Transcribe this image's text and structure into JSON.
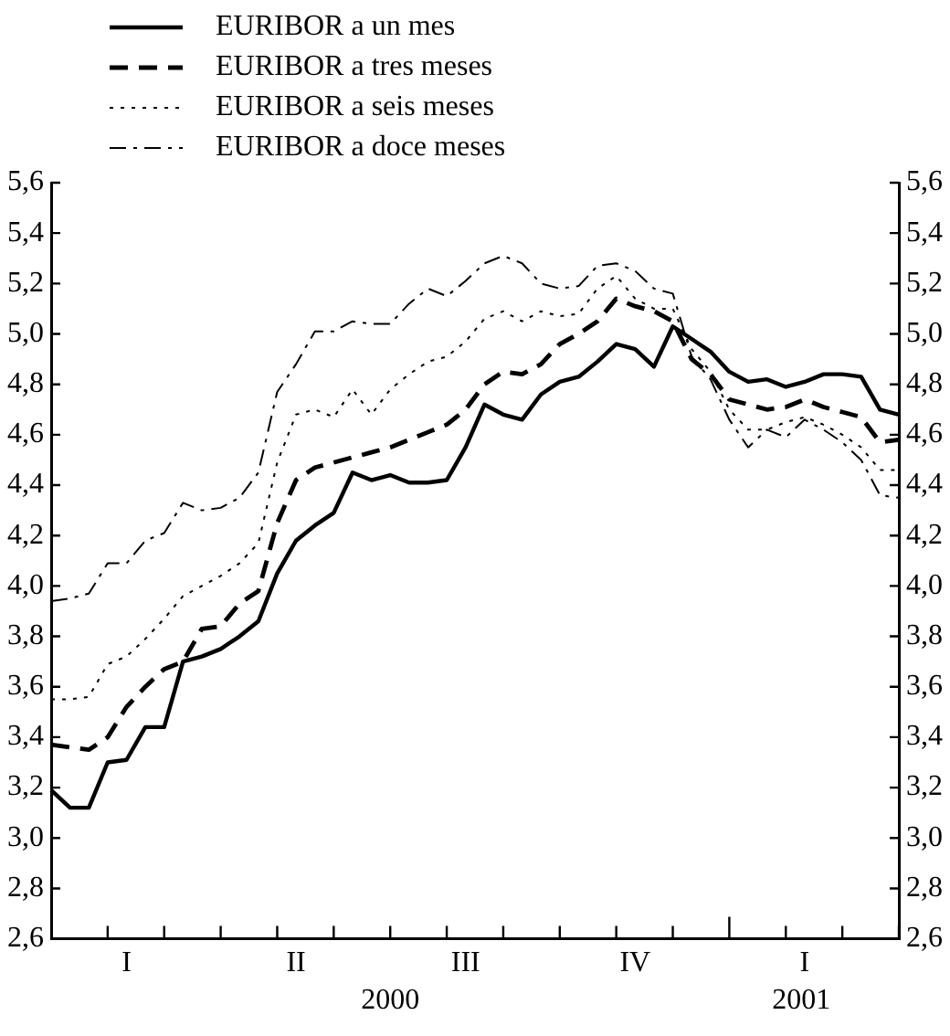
{
  "chart_data": {
    "type": "line",
    "legend": "top left",
    "grid": false,
    "marker": "none",
    "categories": [
      null,
      null,
      null,
      null,
      "I",
      null,
      null,
      null,
      null,
      null,
      null,
      null,
      null,
      "II",
      null,
      null,
      null,
      null,
      null,
      null,
      null,
      null,
      "III",
      null,
      null,
      null,
      null,
      null,
      null,
      null,
      null,
      "IV",
      null,
      null,
      null,
      null,
      null,
      null,
      null,
      null,
      "I",
      null,
      null,
      null,
      null,
      null
    ],
    "annotations": [
      "2000",
      "2001"
    ],
    "ylim": [
      2.6,
      5.6
    ],
    "yticks": [
      {
        "value": 2.6,
        "label": "2,6"
      },
      {
        "value": 2.8,
        "label": "2,8"
      },
      {
        "value": 3.0,
        "label": "3,0"
      },
      {
        "value": 3.2,
        "label": "3,2"
      },
      {
        "value": 3.4,
        "label": "3,4"
      },
      {
        "value": 3.6,
        "label": "3,6"
      },
      {
        "value": 3.8,
        "label": "3,8"
      },
      {
        "value": 4.0,
        "label": "4,0"
      },
      {
        "value": 4.2,
        "label": "4,2"
      },
      {
        "value": 4.4,
        "label": "4,4"
      },
      {
        "value": 4.6,
        "label": "4,6"
      },
      {
        "value": 4.8,
        "label": "4,8"
      },
      {
        "value": 5.0,
        "label": "5,0"
      },
      {
        "value": 5.2,
        "label": "5,2"
      },
      {
        "value": 5.4,
        "label": "5,4"
      },
      {
        "value": 5.6,
        "label": "5,6"
      }
    ],
    "y2lim": [
      2.6,
      5.6
    ],
    "y2ticks": [
      {
        "value": 2.6,
        "label": "2,6"
      },
      {
        "value": 2.8,
        "label": "2,8"
      },
      {
        "value": 3.0,
        "label": "3,0"
      },
      {
        "value": 3.2,
        "label": "3,2"
      },
      {
        "value": 3.4,
        "label": "3,4"
      },
      {
        "value": 3.6,
        "label": "3,6"
      },
      {
        "value": 3.8,
        "label": "3,8"
      },
      {
        "value": 4.0,
        "label": "4,0"
      },
      {
        "value": 4.2,
        "label": "4,2"
      },
      {
        "value": 4.4,
        "label": "4,4"
      },
      {
        "value": 4.6,
        "label": "4,6"
      },
      {
        "value": 4.8,
        "label": "4,8"
      },
      {
        "value": 5.0,
        "label": "5,0"
      },
      {
        "value": 5.2,
        "label": "5,2"
      },
      {
        "value": 5.4,
        "label": "5,4"
      },
      {
        "value": 5.6,
        "label": "5,6"
      }
    ],
    "series": [
      {
        "name": "EURIBOR a un mes",
        "color": "#000000",
        "line_style": "solid",
        "values": [
          3.19,
          3.12,
          3.12,
          3.3,
          3.31,
          3.44,
          3.44,
          3.7,
          3.72,
          3.75,
          3.8,
          3.86,
          4.05,
          4.18,
          4.24,
          4.29,
          4.45,
          4.42,
          4.44,
          4.41,
          4.41,
          4.42,
          4.55,
          4.72,
          4.68,
          4.66,
          4.76,
          4.81,
          4.83,
          4.89,
          4.96,
          4.94,
          4.87,
          5.03,
          4.98,
          4.93,
          4.85,
          4.81,
          4.82,
          4.79,
          4.81,
          4.84,
          4.84,
          4.83,
          4.7,
          4.68
        ]
      },
      {
        "name": "EURIBOR a tres meses",
        "color": "#000000",
        "line_style": "dashed",
        "values": [
          3.37,
          3.36,
          3.35,
          3.4,
          3.52,
          3.6,
          3.67,
          3.7,
          3.83,
          3.84,
          3.93,
          3.98,
          4.25,
          4.42,
          4.47,
          4.49,
          4.51,
          4.53,
          4.55,
          4.58,
          4.61,
          4.64,
          4.7,
          4.8,
          4.85,
          4.84,
          4.88,
          4.96,
          5.0,
          5.05,
          5.14,
          5.11,
          5.09,
          5.05,
          4.9,
          4.84,
          4.74,
          4.72,
          4.7,
          4.71,
          4.74,
          4.71,
          4.69,
          4.67,
          4.57,
          4.58
        ]
      },
      {
        "name": "EURIBOR a seis meses",
        "color": "#000000",
        "line_style": "dotted",
        "values": [
          3.55,
          3.55,
          3.56,
          3.69,
          3.72,
          3.79,
          3.87,
          3.96,
          4.0,
          4.04,
          4.09,
          4.17,
          4.49,
          4.68,
          4.7,
          4.67,
          4.78,
          4.68,
          4.78,
          4.84,
          4.89,
          4.91,
          4.97,
          5.06,
          5.09,
          5.05,
          5.09,
          5.07,
          5.08,
          5.18,
          5.23,
          5.14,
          5.1,
          5.1,
          4.94,
          4.85,
          4.7,
          4.62,
          4.62,
          4.65,
          4.67,
          4.64,
          4.6,
          4.55,
          4.46,
          4.46
        ]
      },
      {
        "name": "EURIBOR a doce meses",
        "color": "#000000",
        "line_style": "dashdot",
        "values": [
          3.94,
          3.95,
          3.97,
          4.09,
          4.09,
          4.18,
          4.21,
          4.33,
          4.3,
          4.31,
          4.35,
          4.45,
          4.77,
          4.88,
          5.01,
          5.01,
          5.05,
          5.04,
          5.04,
          5.12,
          5.18,
          5.15,
          5.21,
          5.28,
          5.31,
          5.28,
          5.2,
          5.18,
          5.19,
          5.27,
          5.28,
          5.25,
          5.18,
          5.16,
          4.91,
          4.82,
          4.66,
          4.55,
          4.62,
          4.59,
          4.66,
          4.62,
          4.57,
          4.5,
          4.36,
          4.35
        ]
      }
    ]
  }
}
